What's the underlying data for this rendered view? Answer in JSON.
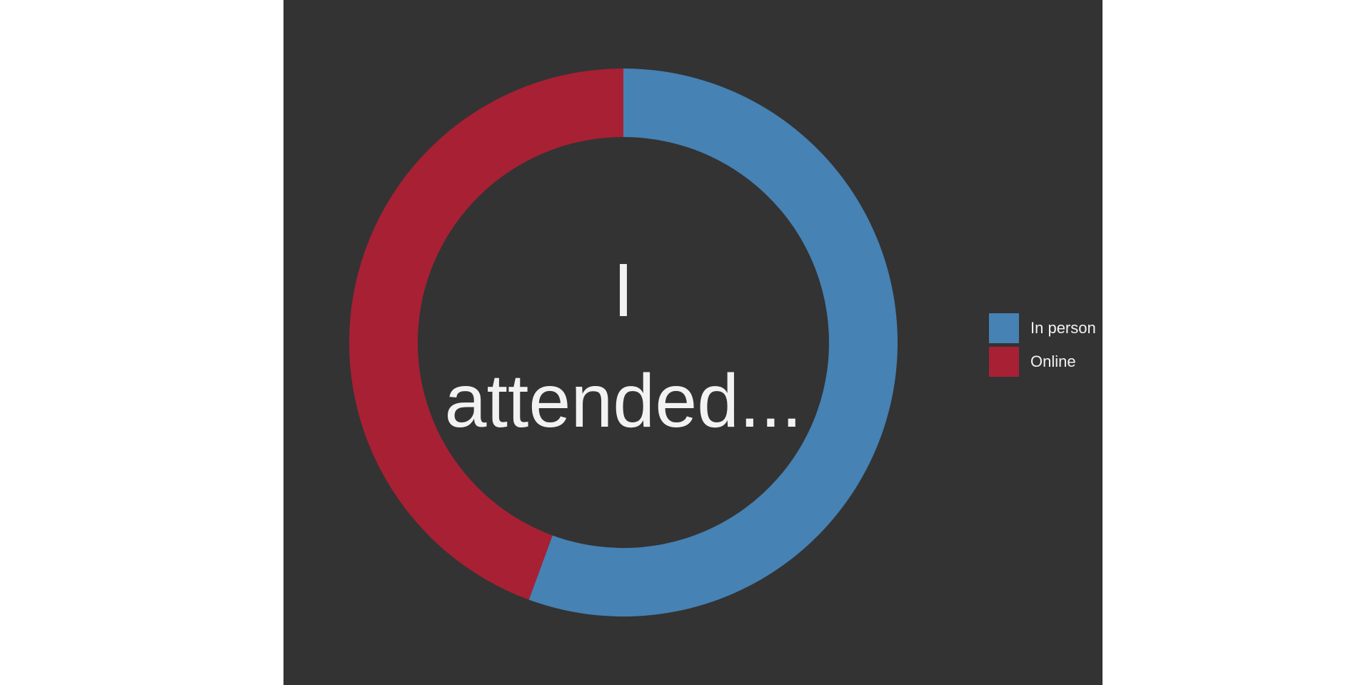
{
  "colors": {
    "background": "#333333",
    "page": "#ffffff",
    "in_person": "#4682b4",
    "online": "#a82034",
    "text": "#f2f2f2"
  },
  "chart_data": {
    "type": "pie",
    "title": "",
    "center_text": [
      "I",
      "attended..."
    ],
    "categories": [
      "In person",
      "Online"
    ],
    "values": [
      55.6,
      44.4
    ],
    "colors": [
      "#4682b4",
      "#a82034"
    ],
    "legend_position": "right"
  }
}
